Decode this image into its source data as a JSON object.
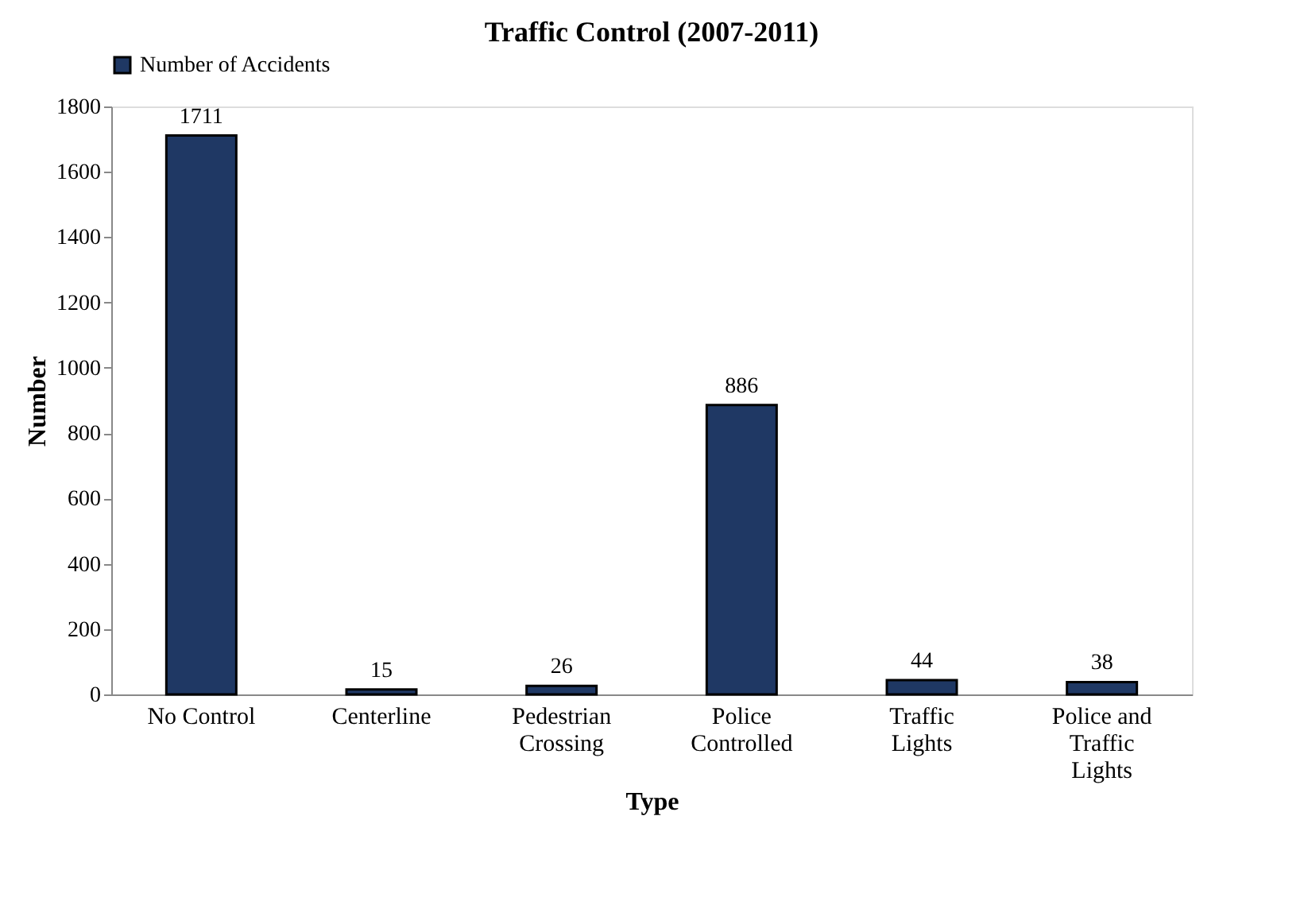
{
  "chart_data": {
    "type": "bar",
    "title": "Traffic Control (2007-2011)",
    "xlabel": "Type",
    "ylabel": "Number",
    "categories": [
      "No Control",
      "Centerline",
      "Pedestrian Crossing",
      "Police Controlled",
      "Traffic Lights",
      "Police and Traffic Lights"
    ],
    "series": [
      {
        "name": "Number of Accidents",
        "color": "#1f3864",
        "values": [
          1711,
          15,
          26,
          886,
          44,
          38
        ]
      }
    ],
    "ylim": [
      0,
      1800
    ],
    "yticks": [
      0,
      200,
      400,
      600,
      800,
      1000,
      1200,
      1400,
      1600,
      1800
    ],
    "data_labels": true,
    "legend": "top",
    "grid": false
  }
}
